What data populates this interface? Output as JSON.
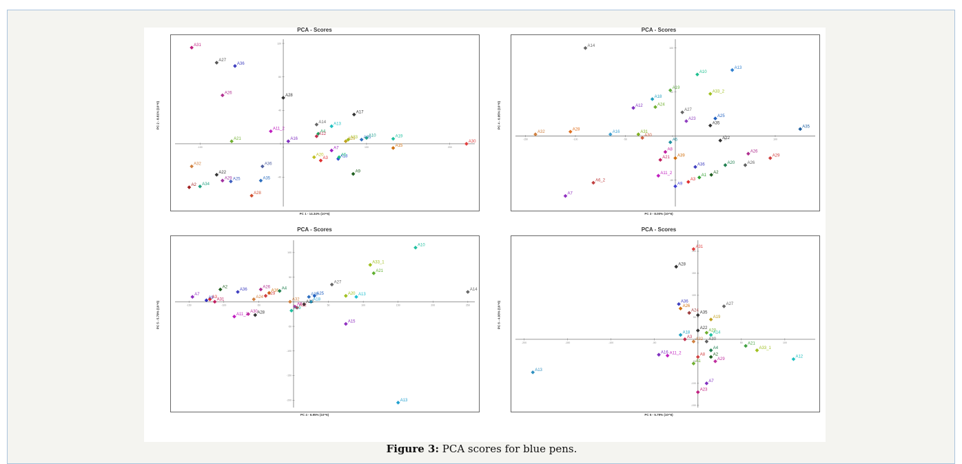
{
  "caption": {
    "label": "Figure 3:",
    "text": " PCA scores for blue pens."
  },
  "chart_data": [
    {
      "type": "scatter",
      "title": "PCA - Scores",
      "xlabel": "PC 1 - 14.34% (10^6)",
      "ylabel": "PC 2 - 8.81% (10^6)",
      "xlim": [
        -130,
        230
      ],
      "ylim": [
        -75,
        125
      ],
      "xticks": [
        -100,
        0,
        100,
        200
      ],
      "yticks": [
        -40,
        0,
        40,
        80,
        120
      ],
      "grid": false,
      "points": [
        {
          "label": "A31",
          "x": -110,
          "y": 115,
          "color": "#c02080"
        },
        {
          "label": "A27",
          "x": -80,
          "y": 97,
          "color": "#555555"
        },
        {
          "label": "A36",
          "x": -58,
          "y": 93,
          "color": "#4040c0"
        },
        {
          "label": "A26",
          "x": -73,
          "y": 58,
          "color": "#b03090"
        },
        {
          "label": "A28",
          "x": 0,
          "y": 55,
          "color": "#333333"
        },
        {
          "label": "A17",
          "x": 85,
          "y": 35,
          "color": "#333333"
        },
        {
          "label": "A14",
          "x": 40,
          "y": 23,
          "color": "#666666"
        },
        {
          "label": "A13",
          "x": 58,
          "y": 21,
          "color": "#20c0c0"
        },
        {
          "label": "A11_2",
          "x": -15,
          "y": 15,
          "color": "#c020c0"
        },
        {
          "label": "A4",
          "x": 42,
          "y": 12,
          "color": "#20a060"
        },
        {
          "label": "A12",
          "x": 40,
          "y": 9,
          "color": "#c03050"
        },
        {
          "label": "A21",
          "x": -62,
          "y": 3,
          "color": "#70b030"
        },
        {
          "label": "A16",
          "x": 6,
          "y": 3,
          "color": "#8030c0"
        },
        {
          "label": "A33",
          "x": 78,
          "y": 5,
          "color": "#a0c020"
        },
        {
          "label": "A25",
          "x": 75,
          "y": 3,
          "color": "#c0a020"
        },
        {
          "label": "A35",
          "x": 94,
          "y": 5,
          "color": "#3070c0"
        },
        {
          "label": "A10",
          "x": 100,
          "y": 7,
          "color": "#20a090"
        },
        {
          "label": "A19",
          "x": 132,
          "y": 6,
          "color": "#20c0a0"
        },
        {
          "label": "A15",
          "x": 132,
          "y": -5,
          "color": "#d07010"
        },
        {
          "label": "A30",
          "x": 220,
          "y": 0,
          "color": "#e04040"
        },
        {
          "label": "A7",
          "x": 58,
          "y": -8,
          "color": "#a020c0"
        },
        {
          "label": "A20",
          "x": 37,
          "y": -16,
          "color": "#c0c020"
        },
        {
          "label": "A3",
          "x": 45,
          "y": -20,
          "color": "#e03030"
        },
        {
          "label": "A18",
          "x": 66,
          "y": -18,
          "color": "#3050d0"
        },
        {
          "label": "A5",
          "x": 67,
          "y": -16,
          "color": "#20c080"
        },
        {
          "label": "A32",
          "x": -110,
          "y": -27,
          "color": "#d08040"
        },
        {
          "label": "A22",
          "x": -80,
          "y": -37,
          "color": "#333333"
        },
        {
          "label": "A29",
          "x": -73,
          "y": -44,
          "color": "#a030a0"
        },
        {
          "label": "A25b",
          "x": -63,
          "y": -45,
          "color": "#4060c0"
        },
        {
          "label": "A36b",
          "x": -25,
          "y": -27,
          "color": "#5060a0"
        },
        {
          "label": "A35b",
          "x": -27,
          "y": -44,
          "color": "#3070c0"
        },
        {
          "label": "A2",
          "x": -113,
          "y": -52,
          "color": "#a02020"
        },
        {
          "label": "A34",
          "x": -100,
          "y": -51,
          "color": "#20a080"
        },
        {
          "label": "A28b",
          "x": -38,
          "y": -62,
          "color": "#d05030"
        },
        {
          "label": "A9",
          "x": 84,
          "y": -36,
          "color": "#206020"
        }
      ]
    },
    {
      "type": "scatter",
      "title": "PCA - Scores",
      "xlabel": "PC 3 - 8.00% (10^6)",
      "ylabel": "PC 4 - 6.95% (10^6)",
      "xlim": [
        -160,
        140
      ],
      "ylim": [
        -80,
        110
      ],
      "xticks": [
        -150,
        -100,
        -50,
        0,
        50,
        100
      ],
      "yticks": [
        -50,
        0,
        50,
        100
      ],
      "grid": false,
      "points": [
        {
          "label": "A14",
          "x": -90,
          "y": 100,
          "color": "#666666"
        },
        {
          "label": "A13",
          "x": 57,
          "y": 75,
          "color": "#3080d0"
        },
        {
          "label": "A10",
          "x": 22,
          "y": 70,
          "color": "#20c090"
        },
        {
          "label": "A33_2",
          "x": 35,
          "y": 48,
          "color": "#a0c020"
        },
        {
          "label": "A19",
          "x": -5,
          "y": 52,
          "color": "#60b040"
        },
        {
          "label": "A18",
          "x": -23,
          "y": 42,
          "color": "#20a0c0"
        },
        {
          "label": "A12",
          "x": -42,
          "y": 32,
          "color": "#8030c0"
        },
        {
          "label": "A24",
          "x": -20,
          "y": 33,
          "color": "#70b030"
        },
        {
          "label": "A27",
          "x": 7,
          "y": 27,
          "color": "#666666"
        },
        {
          "label": "A23",
          "x": 11,
          "y": 17,
          "color": "#9040c0"
        },
        {
          "label": "A25",
          "x": 40,
          "y": 20,
          "color": "#2060c0"
        },
        {
          "label": "A35b",
          "x": 35,
          "y": 12,
          "color": "#333333"
        },
        {
          "label": "A35",
          "x": 125,
          "y": 8,
          "color": "#2060a0"
        },
        {
          "label": "A32",
          "x": -140,
          "y": 2,
          "color": "#d08040"
        },
        {
          "label": "A28",
          "x": -105,
          "y": 5,
          "color": "#e07020"
        },
        {
          "label": "A16",
          "x": -65,
          "y": 2,
          "color": "#40a0d0"
        },
        {
          "label": "A31",
          "x": -37,
          "y": 2,
          "color": "#80b020"
        },
        {
          "label": "A30",
          "x": -33,
          "y": -2,
          "color": "#d06040"
        },
        {
          "label": "A22",
          "x": 45,
          "y": -5,
          "color": "#333333"
        },
        {
          "label": "A5",
          "x": -5,
          "y": -7,
          "color": "#2090a0"
        },
        {
          "label": "A8",
          "x": -10,
          "y": -18,
          "color": "#c020a0"
        },
        {
          "label": "A21",
          "x": -15,
          "y": -27,
          "color": "#c02060"
        },
        {
          "label": "A39",
          "x": 0,
          "y": -25,
          "color": "#d07010"
        },
        {
          "label": "A36",
          "x": 20,
          "y": -35,
          "color": "#4040c0"
        },
        {
          "label": "A20",
          "x": 50,
          "y": -33,
          "color": "#208050"
        },
        {
          "label": "A26",
          "x": 70,
          "y": -33,
          "color": "#606060"
        },
        {
          "label": "A26b",
          "x": 73,
          "y": -20,
          "color": "#b03090"
        },
        {
          "label": "A29",
          "x": 95,
          "y": -25,
          "color": "#d04040"
        },
        {
          "label": "A11_2",
          "x": -17,
          "y": -45,
          "color": "#c020c0"
        },
        {
          "label": "A9",
          "x": 0,
          "y": -57,
          "color": "#4040d0"
        },
        {
          "label": "A3",
          "x": 13,
          "y": -52,
          "color": "#e03030"
        },
        {
          "label": "A1",
          "x": 24,
          "y": -47,
          "color": "#30a030"
        },
        {
          "label": "A2",
          "x": 36,
          "y": -44,
          "color": "#206020"
        },
        {
          "label": "A6_2",
          "x": -82,
          "y": -53,
          "color": "#c04040"
        },
        {
          "label": "A7",
          "x": -110,
          "y": -68,
          "color": "#9030c0"
        }
      ]
    },
    {
      "type": "scatter",
      "title": "PCA - Scores",
      "xlabel": "PC 4 - 6.95% (10^6)",
      "ylabel": "PC 5 - 5.79% (10^6)",
      "xlim": [
        -170,
        260
      ],
      "ylim": [
        -215,
        125
      ],
      "xticks": [
        -150,
        -100,
        -50,
        0,
        50,
        100,
        150,
        200,
        250
      ],
      "yticks": [
        -200,
        -150,
        -100,
        -50,
        0,
        50,
        100
      ],
      "grid": false,
      "points": [
        {
          "label": "A10",
          "x": 175,
          "y": 110,
          "color": "#20c0a0"
        },
        {
          "label": "A33_1",
          "x": 110,
          "y": 75,
          "color": "#a0c020"
        },
        {
          "label": "A21",
          "x": 115,
          "y": 58,
          "color": "#60b030"
        },
        {
          "label": "A14",
          "x": 250,
          "y": 20,
          "color": "#666666"
        },
        {
          "label": "A27",
          "x": 55,
          "y": 35,
          "color": "#666666"
        },
        {
          "label": "A7",
          "x": -145,
          "y": 10,
          "color": "#9030c0"
        },
        {
          "label": "A2",
          "x": -105,
          "y": 25,
          "color": "#206020"
        },
        {
          "label": "A36",
          "x": -80,
          "y": 20,
          "color": "#4040c0"
        },
        {
          "label": "A26",
          "x": -47,
          "y": 25,
          "color": "#b03090"
        },
        {
          "label": "A16",
          "x": -35,
          "y": 18,
          "color": "#d07010"
        },
        {
          "label": "A4",
          "x": -20,
          "y": 22,
          "color": "#208050"
        },
        {
          "label": "A35",
          "x": 22,
          "y": 10,
          "color": "#3070c0"
        },
        {
          "label": "A29",
          "x": -40,
          "y": 12,
          "color": "#d04040"
        },
        {
          "label": "A25",
          "x": 30,
          "y": 12,
          "color": "#2060c0"
        },
        {
          "label": "A20",
          "x": 75,
          "y": 12,
          "color": "#a0c020"
        },
        {
          "label": "A13",
          "x": 90,
          "y": 10,
          "color": "#20c0d0"
        },
        {
          "label": "A3",
          "x": -120,
          "y": 5,
          "color": "#e03030"
        },
        {
          "label": "A31",
          "x": -113,
          "y": 0,
          "color": "#c02060"
        },
        {
          "label": "A9",
          "x": -125,
          "y": 3,
          "color": "#3030c0"
        },
        {
          "label": "A24",
          "x": -57,
          "y": 5,
          "color": "#d08040"
        },
        {
          "label": "A32",
          "x": -5,
          "y": 0,
          "color": "#d08040"
        },
        {
          "label": "A18",
          "x": 25,
          "y": 0,
          "color": "#20a0d0"
        },
        {
          "label": "A22",
          "x": 15,
          "y": -5,
          "color": "#333333"
        },
        {
          "label": "A8",
          "x": 2,
          "y": -10,
          "color": "#c020a0"
        },
        {
          "label": "A12",
          "x": 5,
          "y": -12,
          "color": "#c03050"
        },
        {
          "label": "A19",
          "x": -3,
          "y": -18,
          "color": "#20c0a0"
        },
        {
          "label": "A11_2",
          "x": -85,
          "y": -30,
          "color": "#c020c0"
        },
        {
          "label": "A30",
          "x": -65,
          "y": -25,
          "color": "#c030a0"
        },
        {
          "label": "A28",
          "x": -55,
          "y": -27,
          "color": "#333333"
        },
        {
          "label": "A15",
          "x": 75,
          "y": -45,
          "color": "#9030c0"
        },
        {
          "label": "A13b",
          "x": 150,
          "y": -205,
          "color": "#20a0d0"
        }
      ]
    },
    {
      "type": "scatter",
      "title": "PCA - Scores",
      "xlabel": "PC 5 - 5.79% (10^6)",
      "ylabel": "PC 6 - 4.93% (10^6)",
      "xlim": [
        -210,
        135
      ],
      "ylim": [
        -155,
        225
      ],
      "xticks": [
        -200,
        -150,
        -100,
        -50,
        0,
        50,
        100
      ],
      "yticks": [
        -150,
        -100,
        -50,
        0,
        50,
        100,
        150,
        200
      ],
      "grid": false,
      "points": [
        {
          "label": "A31",
          "x": -5,
          "y": 205,
          "color": "#e04040"
        },
        {
          "label": "A28",
          "x": -25,
          "y": 165,
          "color": "#333333"
        },
        {
          "label": "A36",
          "x": -22,
          "y": 80,
          "color": "#4040c0"
        },
        {
          "label": "A26",
          "x": -20,
          "y": 70,
          "color": "#d07010"
        },
        {
          "label": "A27",
          "x": 30,
          "y": 75,
          "color": "#666666"
        },
        {
          "label": "A24",
          "x": -10,
          "y": 60,
          "color": "#a04040"
        },
        {
          "label": "A35",
          "x": 0,
          "y": 55,
          "color": "#333333"
        },
        {
          "label": "A19",
          "x": 15,
          "y": 45,
          "color": "#c0a020"
        },
        {
          "label": "A18",
          "x": -20,
          "y": 10,
          "color": "#20a0c0"
        },
        {
          "label": "A22",
          "x": 0,
          "y": 20,
          "color": "#333333"
        },
        {
          "label": "A20",
          "x": 10,
          "y": 15,
          "color": "#70b030"
        },
        {
          "label": "A14",
          "x": 15,
          "y": 10,
          "color": "#20c0a0"
        },
        {
          "label": "A3",
          "x": -15,
          "y": 0,
          "color": "#c03050"
        },
        {
          "label": "A32",
          "x": -5,
          "y": -5,
          "color": "#d08040"
        },
        {
          "label": "A30",
          "x": 10,
          "y": -5,
          "color": "#606060"
        },
        {
          "label": "A21",
          "x": 55,
          "y": -15,
          "color": "#40a040"
        },
        {
          "label": "A33_1",
          "x": 68,
          "y": -25,
          "color": "#a0c020"
        },
        {
          "label": "A12",
          "x": 110,
          "y": -45,
          "color": "#20c0c0"
        },
        {
          "label": "A4",
          "x": 15,
          "y": -25,
          "color": "#208050"
        },
        {
          "label": "A2",
          "x": 15,
          "y": -40,
          "color": "#206020"
        },
        {
          "label": "A29",
          "x": 20,
          "y": -50,
          "color": "#c030a0"
        },
        {
          "label": "A16",
          "x": -45,
          "y": -35,
          "color": "#8030c0"
        },
        {
          "label": "A11_2",
          "x": -35,
          "y": -37,
          "color": "#c020c0"
        },
        {
          "label": "A8",
          "x": 0,
          "y": -40,
          "color": "#d04040"
        },
        {
          "label": "A1",
          "x": -5,
          "y": -55,
          "color": "#70b030"
        },
        {
          "label": "A7",
          "x": 10,
          "y": -100,
          "color": "#8030c0"
        },
        {
          "label": "A23",
          "x": 0,
          "y": -120,
          "color": "#c02080"
        },
        {
          "label": "A13",
          "x": -190,
          "y": -75,
          "color": "#3090c0"
        }
      ]
    }
  ]
}
